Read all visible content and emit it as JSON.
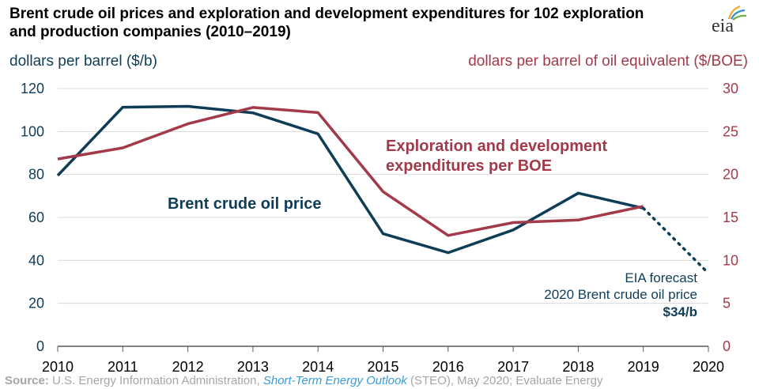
{
  "header": {
    "title": "Brent crude oil prices and exploration and development expenditures for 102 exploration and production companies (2010–2019)",
    "logo_text": "eia"
  },
  "axes": {
    "left_unit": "dollars per barrel ($/b)",
    "right_unit": "dollars per barrel of oil equivalent ($/BOE)"
  },
  "colors": {
    "brent": "#0f3d57",
    "expenditure": "#a33a4a",
    "axis": "#666666"
  },
  "annotations": {
    "brent_label": "Brent crude oil price",
    "exp_label_line1": "Exploration and development",
    "exp_label_line2": "expenditures per BOE",
    "forecast_line1": "EIA forecast",
    "forecast_line2": "2020 Brent crude oil price",
    "forecast_value": "$34/b"
  },
  "source": {
    "label": "Source:",
    "text1": " U.S. Energy Information Administration, ",
    "steo": "Short-Term Energy Outlook",
    "text2": " (STEO), May 2020; Evaluate Energy"
  },
  "chart_data": {
    "type": "line",
    "title": "Brent crude oil prices and exploration and development expenditures for 102 exploration and production companies (2010–2019)",
    "x": [
      2010,
      2011,
      2012,
      2013,
      2014,
      2015,
      2016,
      2017,
      2018,
      2019,
      2020
    ],
    "xlim": [
      2010,
      2020
    ],
    "ylim_left": [
      0,
      120
    ],
    "yticks_left": [
      0,
      20,
      40,
      60,
      80,
      100,
      120
    ],
    "ylim_right": [
      0,
      30
    ],
    "yticks_right": [
      0,
      5,
      10,
      15,
      20,
      25,
      30
    ],
    "ylabel_left": "dollars per barrel ($/b)",
    "ylabel_right": "dollars per barrel of oil equivalent ($/BOE)",
    "grid": true,
    "series": [
      {
        "name": "Brent crude oil price",
        "axis": "left",
        "x": [
          2010,
          2011,
          2012,
          2013,
          2014,
          2015,
          2016,
          2017,
          2018,
          2019
        ],
        "values": [
          79.5,
          111.3,
          111.7,
          108.7,
          98.9,
          52.4,
          43.6,
          54.2,
          71.3,
          64.3
        ]
      },
      {
        "name": "Exploration and development expenditures per BOE",
        "axis": "right",
        "x": [
          2010,
          2011,
          2012,
          2013,
          2014,
          2015,
          2016,
          2017,
          2018,
          2019
        ],
        "values": [
          21.8,
          23.1,
          25.9,
          27.8,
          27.2,
          18.0,
          12.9,
          14.4,
          14.7,
          16.3
        ]
      },
      {
        "name": "EIA forecast 2020 Brent crude oil price",
        "axis": "left",
        "style": "dotted",
        "x": [
          2019,
          2020
        ],
        "values": [
          64.3,
          34
        ]
      }
    ]
  }
}
